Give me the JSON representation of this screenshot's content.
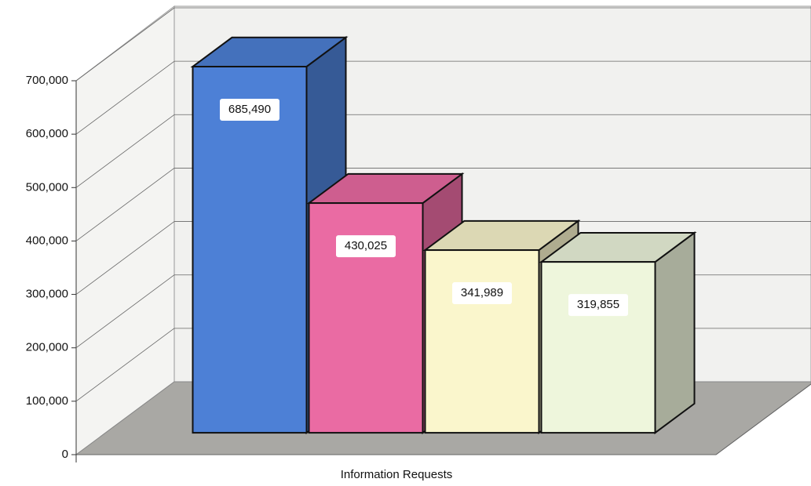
{
  "chart_data": {
    "type": "bar3d",
    "x_label": "Information Requests",
    "categories": [
      null,
      null,
      null,
      null
    ],
    "values": [
      685490,
      430025,
      341989,
      319855
    ],
    "value_labels": [
      "685,490",
      "430,025",
      "341,989",
      "319,855"
    ],
    "colors": [
      "#4d80d6",
      "#ea6ba3",
      "#faf6cc",
      "#eef6dc"
    ],
    "ylim": [
      0,
      700000
    ],
    "yticks": [
      0,
      {
        "value": 100000,
        "label": "100,000"
      },
      {
        "value": 200000,
        "label": "200,000"
      },
      {
        "value": 300000,
        "label": "300,000"
      },
      {
        "value": 400000,
        "label": "400,000"
      },
      {
        "value": 500000,
        "label": "500,000"
      },
      {
        "value": 600000,
        "label": "600,000"
      },
      {
        "value": 700000,
        "label": "700,000"
      }
    ],
    "grid": true
  }
}
